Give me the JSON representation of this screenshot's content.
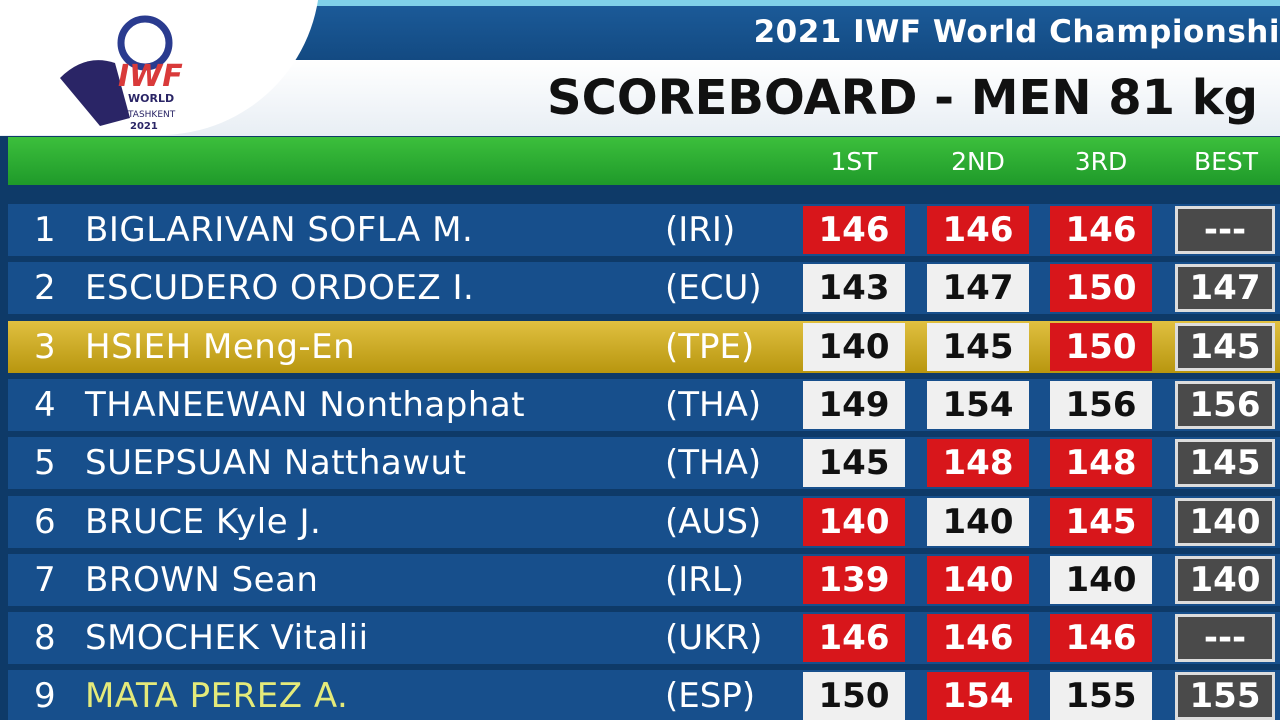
{
  "header": {
    "competition": "2021 IWF World Championshi",
    "title": "SCOREBOARD - MEN 81 kg",
    "logo": {
      "org": "IWF",
      "line1": "WORLD",
      "city": "TASHKENT",
      "year": "2021"
    }
  },
  "table": {
    "columns": [
      "1ST",
      "2ND",
      "3RD",
      "BEST"
    ],
    "rows": [
      {
        "rank": 1,
        "name": "BIGLARIVAN SOFLA M.",
        "country": "(IRI)",
        "attempts": [
          {
            "value": 146,
            "color": "red"
          },
          {
            "value": 146,
            "color": "red"
          },
          {
            "value": 146,
            "color": "red"
          }
        ],
        "best": "---"
      },
      {
        "rank": 2,
        "name": "ESCUDERO ORDOEZ I.",
        "country": "(ECU)",
        "attempts": [
          {
            "value": 143,
            "color": "white"
          },
          {
            "value": 147,
            "color": "white"
          },
          {
            "value": 150,
            "color": "red"
          }
        ],
        "best": 147
      },
      {
        "rank": 3,
        "name": "HSIEH Meng-En",
        "country": "(TPE)",
        "attempts": [
          {
            "value": 140,
            "color": "white"
          },
          {
            "value": 145,
            "color": "white"
          },
          {
            "value": 150,
            "color": "red"
          }
        ],
        "best": 145,
        "row_color": "gold"
      },
      {
        "rank": 4,
        "name": "THANEEWAN Nonthaphat",
        "country": "(THA)",
        "attempts": [
          {
            "value": 149,
            "color": "white"
          },
          {
            "value": 154,
            "color": "white"
          },
          {
            "value": 156,
            "color": "white"
          }
        ],
        "best": 156
      },
      {
        "rank": 5,
        "name": "SUEPSUAN Natthawut",
        "country": "(THA)",
        "attempts": [
          {
            "value": 145,
            "color": "white"
          },
          {
            "value": 148,
            "color": "red"
          },
          {
            "value": 148,
            "color": "red"
          }
        ],
        "best": 145
      },
      {
        "rank": 6,
        "name": "BRUCE Kyle J.",
        "country": "(AUS)",
        "attempts": [
          {
            "value": 140,
            "color": "red"
          },
          {
            "value": 140,
            "color": "white"
          },
          {
            "value": 145,
            "color": "red"
          }
        ],
        "best": 140
      },
      {
        "rank": 7,
        "name": "BROWN Sean",
        "country": "(IRL)",
        "attempts": [
          {
            "value": 139,
            "color": "red"
          },
          {
            "value": 140,
            "color": "red"
          },
          {
            "value": 140,
            "color": "white"
          }
        ],
        "best": 140
      },
      {
        "rank": 8,
        "name": "SMOCHEK Vitalii",
        "country": "(UKR)",
        "attempts": [
          {
            "value": 146,
            "color": "red"
          },
          {
            "value": 146,
            "color": "red"
          },
          {
            "value": 146,
            "color": "red"
          }
        ],
        "best": "---"
      },
      {
        "rank": 9,
        "name": "MATA PEREZ A.",
        "country": "(ESP)",
        "attempts": [
          {
            "value": 150,
            "color": "white"
          },
          {
            "value": 154,
            "color": "red"
          },
          {
            "value": 155,
            "color": "white"
          }
        ],
        "best": 155,
        "name_color": "yellow"
      }
    ]
  }
}
